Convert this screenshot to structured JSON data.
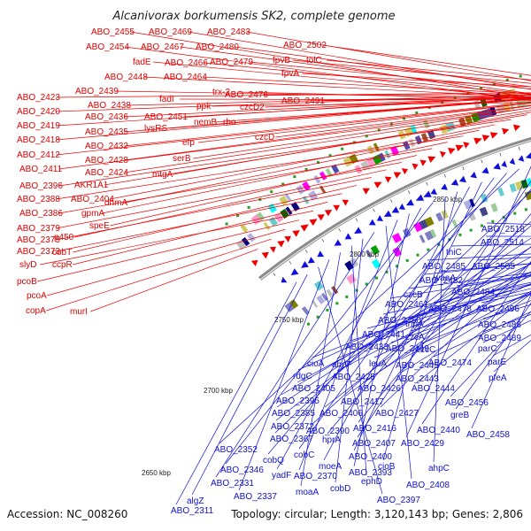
{
  "title": "Alcanivorax borkumensis SK2, complete genome",
  "footer": {
    "accession": "Accession: NC_008260",
    "summary": "Topology: circular; Length: 3,120,143 bp; Genes: 2,806"
  },
  "scale_labels": [
    "2650 kbp",
    "2700 kbp",
    "2750 kbp",
    "2800 kbp",
    "2850 kbp"
  ],
  "top_strand_labels": [
    "ABO_2455",
    "ABO_2469",
    "ABO_2483",
    "ABO_2454",
    "ABO_2467",
    "ABO_2480",
    "ABO_2502",
    "fadE",
    "ABO_2466",
    "ABO_2479",
    "fpvB",
    "tolC",
    "ABO_2448",
    "ABO_2464",
    "fpvA",
    "trx-2",
    "ABO_2439",
    "fadI",
    "ppk",
    "ABO_2476",
    "ABO_2491",
    "ABO_2423",
    "ABO_2438",
    "czcD2",
    "ABO_2420",
    "ABO_2436",
    "ABO_2451",
    "nemB",
    "rho",
    "ABO_2419",
    "lysRS",
    "czcD",
    "ABO_2435",
    "efp",
    "ABO_2418",
    "ABO_2432",
    "ABO_2412",
    "ABO_2428",
    "serB",
    "ABO_2411",
    "ABO_2424",
    "mtgA",
    "AKR1A1",
    "ABO_2396",
    "ABO_2404",
    "dhmA",
    "ABO_2388",
    "gpmA",
    "ABO_2386",
    "speE",
    "ABO_2379",
    "p450",
    "ABO_2375",
    "cobT",
    "ABO_2373",
    "ccpR",
    "slyD",
    "pcoB",
    "pcoA",
    "copA",
    "murI"
  ],
  "bottom_strand_labels": [
    "ABO_2518",
    "ABO_2514",
    "thiC",
    "ABO_2505",
    "ABO_2485",
    "waaA",
    "ABO_2482",
    "czcB",
    "ABO_2484",
    "ABO_2461",
    "ABO_2478",
    "ABO_2496",
    "ABO_2450",
    "tnpA",
    "ABO_2488",
    "ABO_2441",
    "czcA",
    "ABO_2489",
    "ABO_2433",
    "ABO_2449",
    "czcC",
    "parC",
    "ABO_2474",
    "parE",
    "cioA",
    "ahpF",
    "leuA",
    "ABO_2445",
    "rdgC",
    "ABO_2425",
    "ABO_2443",
    "pfeA",
    "ABO_2405",
    "ABO_2426",
    "ABO_2444",
    "ABO_2395",
    "ABO_2417",
    "ABO_2456",
    "ABO_2385",
    "ABO_2406",
    "ABO_2427",
    "greB",
    "ABO_2372",
    "ABO_2390",
    "ABO_2440",
    "ABO_2458",
    "ABO_2416",
    "ABO_2367",
    "hprA",
    "ABO_2407",
    "ABO_2429",
    "ABO_2352",
    "cobQ",
    "cobC",
    "ABO_2400",
    "moeA",
    "cioB",
    "ahpC",
    "ABO_2346",
    "yadF",
    "ABO_2393",
    "ABO_2370",
    "ABO_2408",
    "ABO_2331",
    "cobD",
    "ephD",
    "moaA",
    "ABO_2337",
    "ABO_2397",
    "algZ",
    "ABO_2311"
  ]
}
